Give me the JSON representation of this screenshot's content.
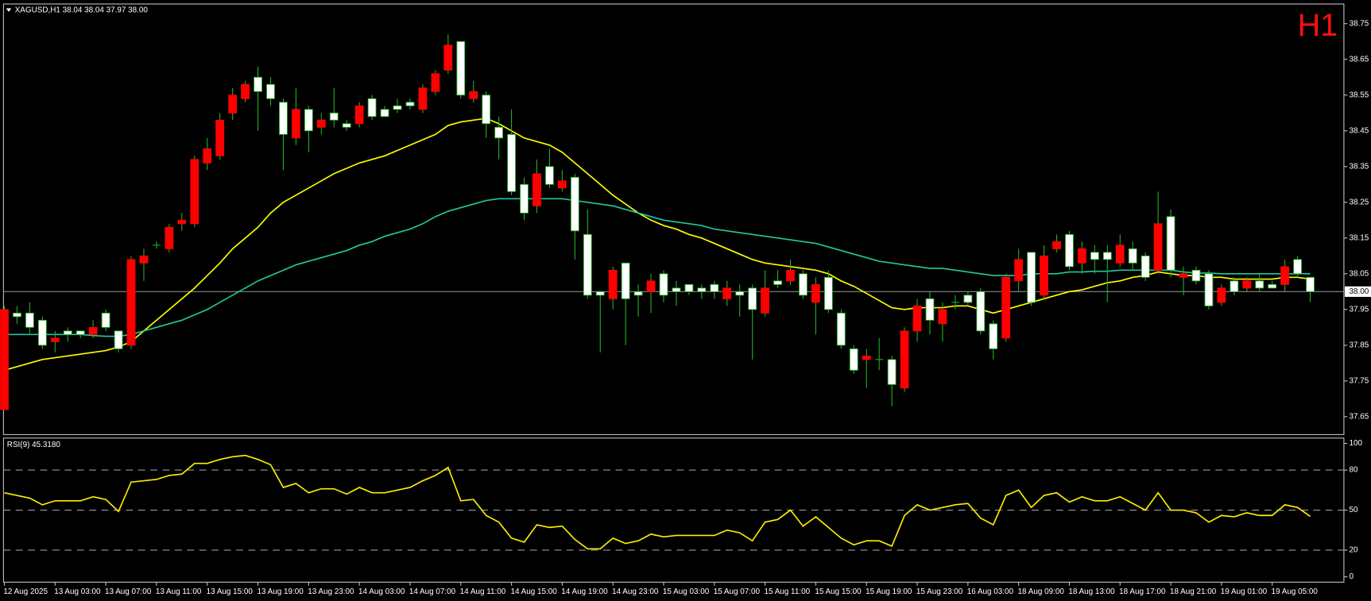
{
  "chart_data": [
    {
      "type": "candlestick",
      "title": "XAGUSD,H1  38.04 38.04 37.97 38.00",
      "period_label": "H1",
      "categories": [
        "12 Aug 2025",
        null,
        null,
        null,
        "13 Aug 03:00",
        null,
        null,
        null,
        "13 Aug 07:00",
        null,
        null,
        null,
        "13 Aug 11:00",
        null,
        null,
        null,
        "13 Aug 15:00",
        null,
        null,
        null,
        "13 Aug 19:00",
        null,
        null,
        null,
        "13 Aug 23:00",
        null,
        null,
        null,
        "14 Aug 03:00",
        null,
        null,
        null,
        "14 Aug 07:00",
        null,
        null,
        null,
        "14 Aug 11:00",
        null,
        null,
        null,
        "14 Aug 15:00",
        null,
        null,
        null,
        "14 Aug 19:00",
        null,
        null,
        null,
        "14 Aug 23:00",
        null,
        null,
        null,
        "15 Aug 03:00",
        null,
        null,
        null,
        "15 Aug 07:00",
        null,
        null,
        null,
        "15 Aug 11:00",
        null,
        null,
        null,
        "15 Aug 15:00",
        null,
        null,
        null,
        "15 Aug 19:00",
        null,
        null,
        null,
        "15 Aug 23:00",
        null,
        null,
        null,
        "16 Aug 03:00",
        null,
        null,
        null,
        "18 Aug 09:00",
        null,
        null,
        null,
        "18 Aug 13:00",
        null,
        null,
        null,
        "18 Aug 17:00",
        null,
        null,
        null,
        "18 Aug 21:00",
        null,
        null,
        null,
        "19 Aug 01:00",
        null,
        null,
        null,
        "19 Aug 05:00",
        null,
        null,
        null
      ],
      "open": [
        37.67,
        37.94,
        37.94,
        37.92,
        37.86,
        37.89,
        37.89,
        37.88,
        37.94,
        37.89,
        37.85,
        38.08,
        38.13,
        38.12,
        38.19,
        38.19,
        38.36,
        38.38,
        38.5,
        38.54,
        38.6,
        38.58,
        38.53,
        38.43,
        38.51,
        38.46,
        38.5,
        38.47,
        38.47,
        38.54,
        38.51,
        38.52,
        38.53,
        38.51,
        38.56,
        38.62,
        38.7,
        38.54,
        38.55,
        38.46,
        38.44,
        38.3,
        38.24,
        38.35,
        38.29,
        38.32,
        38.16,
        38.0,
        37.98,
        38.08,
        38.0,
        38.0,
        38.05,
        38.01,
        38.02,
        38.01,
        38.02,
        37.98,
        38.0,
        38.01,
        37.94,
        38.03,
        38.03,
        38.05,
        37.97,
        38.04,
        37.94,
        37.84,
        37.81,
        37.81,
        37.81,
        37.73,
        37.89,
        37.98,
        37.91,
        37.97,
        37.99,
        38.0,
        37.91,
        37.87,
        38.03,
        38.11,
        37.99,
        38.12,
        38.16,
        38.08,
        38.11,
        38.11,
        38.08,
        38.12,
        38.1,
        38.06,
        38.21,
        38.04,
        38.06,
        38.05,
        37.97,
        38.03,
        38.01,
        38.03,
        38.02,
        38.02,
        38.09,
        38.04
      ],
      "high": [
        37.96,
        37.96,
        37.97,
        37.93,
        37.89,
        37.9,
        37.89,
        37.92,
        37.95,
        37.89,
        38.1,
        38.12,
        38.14,
        38.19,
        38.22,
        38.38,
        38.43,
        38.5,
        38.57,
        38.59,
        38.63,
        38.6,
        38.54,
        38.57,
        38.52,
        38.5,
        38.57,
        38.48,
        38.53,
        38.55,
        38.52,
        38.54,
        38.54,
        38.58,
        38.62,
        38.72,
        38.7,
        38.59,
        38.56,
        38.49,
        38.51,
        38.32,
        38.37,
        38.4,
        38.34,
        38.33,
        38.23,
        38.0,
        38.07,
        38.08,
        38.02,
        38.05,
        38.06,
        38.03,
        38.02,
        38.02,
        38.03,
        38.03,
        38.02,
        38.02,
        38.06,
        38.06,
        38.09,
        38.06,
        38.04,
        38.06,
        37.95,
        37.85,
        37.84,
        37.87,
        37.82,
        37.9,
        37.98,
        38.0,
        37.97,
        37.99,
        38.0,
        38.01,
        37.92,
        38.05,
        38.12,
        38.11,
        38.13,
        38.16,
        38.17,
        38.14,
        38.13,
        38.13,
        38.16,
        38.14,
        38.11,
        38.28,
        38.23,
        38.07,
        38.07,
        38.06,
        38.02,
        38.04,
        38.04,
        38.05,
        38.03,
        38.09,
        38.1,
        38.04
      ],
      "low": [
        37.67,
        37.91,
        37.88,
        37.84,
        37.83,
        37.86,
        37.87,
        37.87,
        37.89,
        37.83,
        37.84,
        38.03,
        38.12,
        38.11,
        38.17,
        38.18,
        38.34,
        38.37,
        38.48,
        38.53,
        38.45,
        38.52,
        38.34,
        38.41,
        38.39,
        38.44,
        38.46,
        38.45,
        38.46,
        38.48,
        38.49,
        38.5,
        38.51,
        38.5,
        38.55,
        38.61,
        38.54,
        38.53,
        38.43,
        38.37,
        38.27,
        38.2,
        38.22,
        38.29,
        38.28,
        38.09,
        37.98,
        37.83,
        37.95,
        37.85,
        37.93,
        37.94,
        37.97,
        37.96,
        37.99,
        37.98,
        37.98,
        37.96,
        37.93,
        37.81,
        37.93,
        38.01,
        38.02,
        37.98,
        37.88,
        37.94,
        37.84,
        37.77,
        37.73,
        37.78,
        37.68,
        37.72,
        37.86,
        37.88,
        37.86,
        37.95,
        37.96,
        37.88,
        37.81,
        37.86,
        38.0,
        37.96,
        37.98,
        38.11,
        38.06,
        38.05,
        38.05,
        37.97,
        38.07,
        38.06,
        38.03,
        38.05,
        38.04,
        37.99,
        38.02,
        37.95,
        37.96,
        37.99,
        38.0,
        38.0,
        38.01,
        38.0,
        38.04,
        37.97
      ],
      "close": [
        37.95,
        37.93,
        37.9,
        37.85,
        37.87,
        37.88,
        37.88,
        37.9,
        37.9,
        37.84,
        38.09,
        38.1,
        38.13,
        38.18,
        38.2,
        38.37,
        38.4,
        38.48,
        38.55,
        38.58,
        38.56,
        38.54,
        38.44,
        38.51,
        38.45,
        38.48,
        38.48,
        38.46,
        38.52,
        38.49,
        38.49,
        38.51,
        38.52,
        38.57,
        38.61,
        38.69,
        38.55,
        38.56,
        38.47,
        38.43,
        38.28,
        38.22,
        38.33,
        38.3,
        38.31,
        38.17,
        37.99,
        37.99,
        38.06,
        37.98,
        37.99,
        38.03,
        37.99,
        38.0,
        38.0,
        38.0,
        38.0,
        38.01,
        37.99,
        37.95,
        38.01,
        38.02,
        38.06,
        37.99,
        38.02,
        37.95,
        37.85,
        37.78,
        37.82,
        37.81,
        37.74,
        37.89,
        37.96,
        37.92,
        37.95,
        37.97,
        37.97,
        37.89,
        37.84,
        38.04,
        38.09,
        37.97,
        38.1,
        38.14,
        38.07,
        38.12,
        38.09,
        38.09,
        38.13,
        38.08,
        38.04,
        38.19,
        38.06,
        38.05,
        38.03,
        37.96,
        38.01,
        38.0,
        38.03,
        38.01,
        38.01,
        38.07,
        38.05,
        38.0
      ],
      "up_color": "#ff0000",
      "down_color": "#ffffff",
      "wick_color": "#22b022",
      "series": [
        {
          "color": "#ffff00",
          "values": [
            37.78,
            37.79,
            37.8,
            37.81,
            37.815,
            37.82,
            37.825,
            37.83,
            37.835,
            37.845,
            37.86,
            37.89,
            37.92,
            37.95,
            37.98,
            38.01,
            38.045,
            38.08,
            38.12,
            38.15,
            38.18,
            38.22,
            38.25,
            38.27,
            38.29,
            38.31,
            38.33,
            38.345,
            38.36,
            38.37,
            38.38,
            38.395,
            38.41,
            38.425,
            38.44,
            38.465,
            38.475,
            38.48,
            38.485,
            38.47,
            38.45,
            38.43,
            38.42,
            38.41,
            38.39,
            38.36,
            38.33,
            38.3,
            38.27,
            38.245,
            38.22,
            38.2,
            38.185,
            38.175,
            38.16,
            38.15,
            38.135,
            38.12,
            38.105,
            38.09,
            38.08,
            38.075,
            38.07,
            38.065,
            38.06,
            38.05,
            38.03,
            38.015,
            37.995,
            37.975,
            37.955,
            37.95,
            37.955,
            37.955,
            37.955,
            37.96,
            37.96,
            37.95,
            37.94,
            37.95,
            37.96,
            37.97,
            37.98,
            37.99,
            38.0,
            38.005,
            38.015,
            38.025,
            38.03,
            38.04,
            38.045,
            38.055,
            38.05,
            38.045,
            38.045,
            38.04,
            38.04,
            38.035,
            38.035,
            38.035,
            38.035,
            38.04,
            38.04,
            38.035
          ]
        },
        {
          "color": "#20c8a0",
          "values": [
            37.88,
            37.88,
            37.88,
            37.88,
            37.88,
            37.88,
            37.88,
            37.877,
            37.875,
            37.875,
            37.88,
            37.89,
            37.9,
            37.91,
            37.92,
            37.935,
            37.95,
            37.97,
            37.99,
            38.01,
            38.03,
            38.045,
            38.06,
            38.075,
            38.085,
            38.095,
            38.105,
            38.115,
            38.13,
            38.14,
            38.155,
            38.165,
            38.175,
            38.19,
            38.21,
            38.225,
            38.235,
            38.245,
            38.255,
            38.26,
            38.26,
            38.26,
            38.26,
            38.26,
            38.26,
            38.255,
            38.25,
            38.245,
            38.24,
            38.23,
            38.22,
            38.21,
            38.2,
            38.195,
            38.19,
            38.185,
            38.175,
            38.17,
            38.165,
            38.16,
            38.155,
            38.15,
            38.145,
            38.14,
            38.135,
            38.125,
            38.115,
            38.105,
            38.095,
            38.085,
            38.08,
            38.075,
            38.07,
            38.065,
            38.065,
            38.06,
            38.055,
            38.05,
            38.045,
            38.045,
            38.045,
            38.05,
            38.05,
            38.05,
            38.055,
            38.055,
            38.057,
            38.057,
            38.06,
            38.06,
            38.06,
            38.06,
            38.06,
            38.055,
            38.052,
            38.052,
            38.05,
            38.05,
            38.05,
            38.05,
            38.05,
            38.05,
            38.05,
            38.05
          ]
        }
      ],
      "ylim": [
        37.6,
        38.805
      ],
      "yticks": [
        38.75,
        38.65,
        38.55,
        38.45,
        38.35,
        38.25,
        38.15,
        38.05,
        37.95,
        37.85,
        37.75,
        37.65
      ],
      "current_price": {
        "value": 38,
        "label": "38.00"
      },
      "price_line_color": "#8a8a8a"
    },
    {
      "type": "line",
      "title": "RSI(9) 45.3180",
      "color": "#ffee00",
      "values": [
        63,
        61,
        59,
        54,
        57,
        57,
        57,
        60,
        58,
        49,
        71,
        72,
        73,
        76,
        77,
        85,
        85,
        88,
        90,
        91,
        88,
        84,
        67,
        70,
        63,
        66,
        66,
        62,
        67,
        63,
        63,
        65,
        67,
        72,
        76,
        82,
        57,
        58,
        46,
        41,
        29,
        26,
        39,
        37,
        38,
        28,
        21,
        21,
        29,
        25,
        27,
        32,
        30,
        31,
        31,
        31,
        31,
        35,
        33,
        27,
        41,
        43,
        50,
        38,
        45,
        37,
        29,
        24,
        27,
        27,
        23,
        46,
        54,
        50,
        52,
        54,
        55,
        44,
        39,
        61,
        65,
        52,
        61,
        63,
        56,
        60,
        57,
        57,
        60,
        55,
        50,
        63,
        50,
        50,
        48,
        41,
        46,
        45,
        48,
        46,
        46,
        54,
        52,
        45.318
      ],
      "ylim": [
        -4,
        104
      ],
      "yticks": [
        100,
        80,
        50,
        20,
        0
      ],
      "levels": [
        80,
        50,
        20
      ]
    }
  ]
}
